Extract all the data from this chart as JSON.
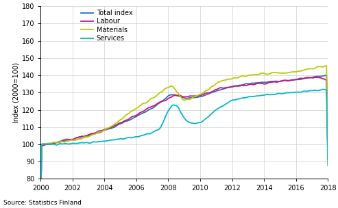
{
  "title": "",
  "ylabel": "Index (2000=100)",
  "source": "Source: Statistics Finland",
  "xlim": [
    2000,
    2018
  ],
  "ylim": [
    80,
    180
  ],
  "yticks": [
    80,
    90,
    100,
    110,
    120,
    130,
    140,
    150,
    160,
    170,
    180
  ],
  "xticks": [
    2000,
    2002,
    2004,
    2006,
    2008,
    2010,
    2012,
    2014,
    2016,
    2018
  ],
  "legend_labels": [
    "Total index",
    "Labour",
    "Materials",
    "Services"
  ],
  "colors": [
    "#3070b0",
    "#cc1480",
    "#b8cc00",
    "#00b8cc"
  ],
  "linewidth": 1.3,
  "grid_color": "#d0d0d0",
  "total_kp": {
    "x": [
      2000,
      2000.5,
      2001,
      2001.5,
      2002,
      2002.5,
      2003,
      2003.5,
      2004,
      2004.5,
      2005,
      2005.5,
      2006,
      2006.5,
      2007,
      2007.5,
      2008,
      2008.3,
      2008.7,
      2009,
      2009.5,
      2010,
      2010.5,
      2011,
      2011.5,
      2012,
      2012.5,
      2013,
      2013.5,
      2014,
      2014.5,
      2015,
      2015.5,
      2016,
      2016.5,
      2017,
      2017.5,
      2018
    ],
    "y": [
      100,
      100.5,
      101,
      102,
      102.5,
      103.5,
      105,
      106.5,
      108,
      109.5,
      112,
      114,
      116,
      118.5,
      121,
      124,
      128,
      129,
      128,
      126.5,
      127,
      127.5,
      129,
      131,
      132.5,
      133.5,
      134.5,
      135,
      135.5,
      136,
      136.5,
      136.5,
      137,
      137.5,
      138,
      139,
      139.5,
      140
    ]
  },
  "labour_kp": {
    "x": [
      2000,
      2000.5,
      2001,
      2001.5,
      2002,
      2002.5,
      2003,
      2003.5,
      2004,
      2004.5,
      2005,
      2005.5,
      2006,
      2006.5,
      2007,
      2007.5,
      2008,
      2008.3,
      2008.7,
      2009,
      2009.5,
      2010,
      2010.5,
      2011,
      2011.5,
      2012,
      2012.5,
      2013,
      2013.5,
      2014,
      2014.5,
      2015,
      2015.5,
      2016,
      2016.5,
      2017,
      2017.5,
      2018
    ],
    "y": [
      99,
      100,
      101,
      102.5,
      103,
      104.5,
      105.5,
      107,
      108.5,
      110,
      112.5,
      115,
      117,
      119.5,
      122,
      124.5,
      126.5,
      128,
      128.5,
      127.5,
      128,
      128.5,
      130,
      131.5,
      133,
      133.5,
      134,
      134.5,
      135,
      135.5,
      136,
      136.5,
      137,
      137.5,
      138.5,
      139,
      139,
      137
    ]
  },
  "materials_kp": {
    "x": [
      2000,
      2000.5,
      2001,
      2001.5,
      2002,
      2002.5,
      2003,
      2003.5,
      2004,
      2004.5,
      2005,
      2005.5,
      2006,
      2006.5,
      2007,
      2007.5,
      2008,
      2008.3,
      2008.8,
      2009,
      2009.5,
      2010,
      2010.5,
      2011,
      2011.5,
      2012,
      2012.5,
      2013,
      2013.5,
      2014,
      2014.5,
      2015,
      2015.5,
      2016,
      2016.5,
      2017,
      2017.5,
      2018
    ],
    "y": [
      100,
      100.5,
      101,
      102,
      102.5,
      103.5,
      104.5,
      106.5,
      108,
      111,
      114,
      118,
      121,
      124,
      127,
      130,
      133,
      134,
      127,
      125.5,
      127,
      129,
      132,
      135,
      137,
      138,
      139,
      139.5,
      140.5,
      141,
      141.5,
      141,
      141.5,
      142,
      143,
      144,
      145,
      145.5
    ]
  },
  "services_kp": {
    "x": [
      2000,
      2000.5,
      2001,
      2001.5,
      2002,
      2002.5,
      2003,
      2003.5,
      2004,
      2004.5,
      2005,
      2005.5,
      2006,
      2006.5,
      2007,
      2007.5,
      2008,
      2008.3,
      2008.6,
      2009,
      2009.3,
      2009.7,
      2010,
      2010.5,
      2011,
      2011.5,
      2012,
      2012.5,
      2013,
      2013.5,
      2014,
      2014.5,
      2015,
      2015.5,
      2016,
      2016.5,
      2017,
      2017.5,
      2018
    ],
    "y": [
      100,
      100,
      100,
      100.5,
      100.5,
      101,
      101,
      101.5,
      102,
      102.5,
      103,
      103.5,
      104.5,
      105.5,
      107,
      109,
      120,
      123,
      122,
      115,
      112.5,
      112,
      112.5,
      116,
      120,
      123,
      125.5,
      126.5,
      127.5,
      128,
      128.5,
      129,
      129.5,
      130,
      130,
      130.5,
      131,
      131.5,
      131.5
    ]
  }
}
